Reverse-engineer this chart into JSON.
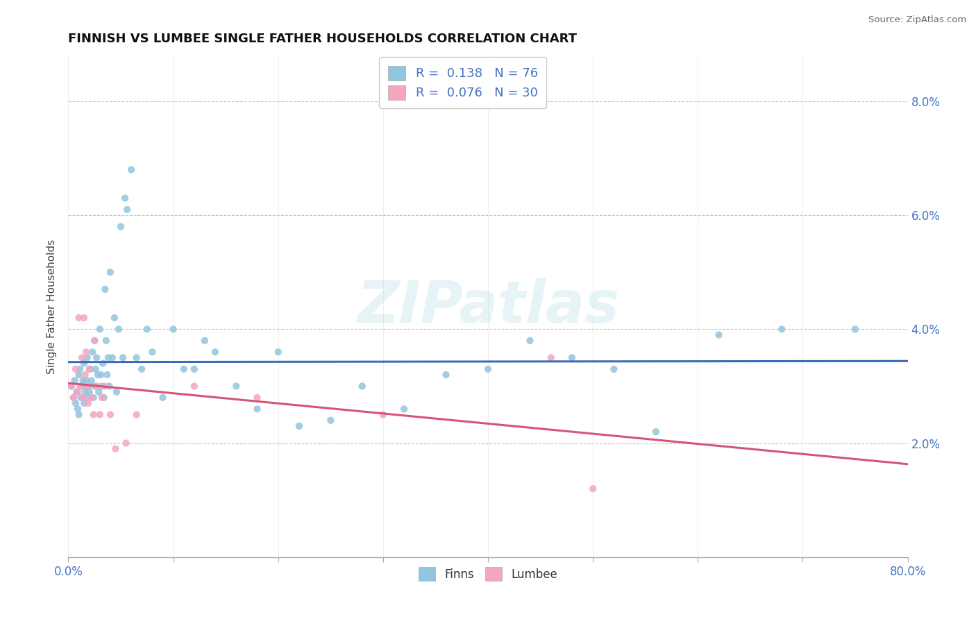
{
  "title": "FINNISH VS LUMBEE SINGLE FATHER HOUSEHOLDS CORRELATION CHART",
  "source": "Source: ZipAtlas.com",
  "ylabel": "Single Father Households",
  "xlim": [
    0.0,
    0.8
  ],
  "ylim": [
    0.0,
    0.088
  ],
  "xticks": [
    0.0,
    0.1,
    0.2,
    0.3,
    0.4,
    0.5,
    0.6,
    0.7,
    0.8
  ],
  "xticklabels": [
    "0.0%",
    "",
    "",
    "",
    "",
    "",
    "",
    "",
    "80.0%"
  ],
  "yticks": [
    0.02,
    0.04,
    0.06,
    0.08
  ],
  "yticklabels": [
    "2.0%",
    "4.0%",
    "6.0%",
    "8.0%"
  ],
  "legend_r_finn": "R =  0.138",
  "legend_n_finn": "N = 76",
  "legend_r_lumb": "R =  0.076",
  "legend_n_lumb": "N = 30",
  "finn_color": "#92c5de",
  "lumb_color": "#f4a6c0",
  "finn_line_color": "#3a6db5",
  "lumb_line_color": "#d4547a",
  "finns_x": [
    0.003,
    0.005,
    0.006,
    0.007,
    0.008,
    0.009,
    0.01,
    0.01,
    0.011,
    0.012,
    0.013,
    0.014,
    0.015,
    0.015,
    0.016,
    0.017,
    0.018,
    0.018,
    0.019,
    0.02,
    0.021,
    0.022,
    0.023,
    0.024,
    0.025,
    0.025,
    0.026,
    0.027,
    0.028,
    0.029,
    0.03,
    0.031,
    0.032,
    0.033,
    0.034,
    0.035,
    0.036,
    0.037,
    0.038,
    0.039,
    0.04,
    0.042,
    0.044,
    0.046,
    0.048,
    0.05,
    0.052,
    0.054,
    0.056,
    0.06,
    0.065,
    0.07,
    0.075,
    0.08,
    0.09,
    0.1,
    0.11,
    0.12,
    0.13,
    0.14,
    0.16,
    0.18,
    0.2,
    0.22,
    0.25,
    0.28,
    0.32,
    0.36,
    0.4,
    0.44,
    0.48,
    0.52,
    0.56,
    0.62,
    0.68,
    0.75
  ],
  "finns_y": [
    0.03,
    0.028,
    0.031,
    0.027,
    0.029,
    0.026,
    0.032,
    0.025,
    0.033,
    0.028,
    0.03,
    0.031,
    0.034,
    0.027,
    0.029,
    0.031,
    0.035,
    0.028,
    0.03,
    0.029,
    0.033,
    0.031,
    0.036,
    0.028,
    0.038,
    0.03,
    0.033,
    0.035,
    0.032,
    0.029,
    0.04,
    0.032,
    0.03,
    0.034,
    0.028,
    0.047,
    0.038,
    0.032,
    0.035,
    0.03,
    0.05,
    0.035,
    0.042,
    0.029,
    0.04,
    0.058,
    0.035,
    0.063,
    0.061,
    0.068,
    0.035,
    0.033,
    0.04,
    0.036,
    0.028,
    0.04,
    0.033,
    0.033,
    0.038,
    0.036,
    0.03,
    0.026,
    0.036,
    0.023,
    0.024,
    0.03,
    0.026,
    0.032,
    0.033,
    0.038,
    0.035,
    0.033,
    0.022,
    0.039,
    0.04,
    0.04
  ],
  "lumbee_x": [
    0.003,
    0.005,
    0.007,
    0.009,
    0.01,
    0.011,
    0.013,
    0.014,
    0.015,
    0.016,
    0.017,
    0.018,
    0.019,
    0.02,
    0.022,
    0.024,
    0.025,
    0.027,
    0.03,
    0.032,
    0.035,
    0.04,
    0.045,
    0.055,
    0.065,
    0.12,
    0.18,
    0.3,
    0.46,
    0.5
  ],
  "lumbee_y": [
    0.03,
    0.028,
    0.033,
    0.029,
    0.042,
    0.03,
    0.035,
    0.028,
    0.042,
    0.032,
    0.036,
    0.03,
    0.027,
    0.033,
    0.028,
    0.025,
    0.038,
    0.03,
    0.025,
    0.028,
    0.03,
    0.025,
    0.019,
    0.02,
    0.025,
    0.03,
    0.028,
    0.025,
    0.035,
    0.012
  ]
}
